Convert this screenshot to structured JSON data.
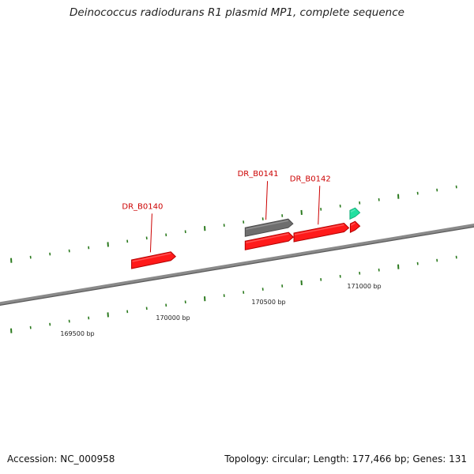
{
  "title": "Deinococcus radiodurans R1 plasmid MP1, complete sequence",
  "accession_text": "Accession: NC_000958",
  "summary_text": "Topology: circular; Length: 177,466 bp; Genes: 131",
  "colors": {
    "backbone": "#8a8a8a",
    "gene_red": "#ff1a1a",
    "gene_gray": "#6e6e6e",
    "gene_teal": "#22e0a0",
    "tick": "#2b7a1e",
    "gene_label": "#cc0000",
    "scale_label": "#222222"
  },
  "genes": [
    {
      "id": "DR_B0140",
      "color": "gene_red",
      "lane": "outer",
      "start_bp": 169866,
      "end_bp": 170096,
      "labeled": true
    },
    {
      "id": "DR_B0141",
      "color": "gene_gray",
      "lane": "outer2",
      "start_bp": 170460,
      "end_bp": 170710,
      "labeled": true
    },
    {
      "color": "gene_red",
      "lane": "outer",
      "start_bp": 170460,
      "end_bp": 170712,
      "labeled": false
    },
    {
      "id": "DR_B0142",
      "color": "gene_red",
      "lane": "outer",
      "start_bp": 170715,
      "end_bp": 171002,
      "labeled": true
    },
    {
      "color": "gene_red",
      "lane": "outer",
      "start_bp": 171010,
      "end_bp": 171060,
      "labeled": false
    },
    {
      "color": "gene_teal",
      "lane": "outer2",
      "start_bp": 171008,
      "end_bp": 171060,
      "labeled": false
    }
  ],
  "scale_labels": [
    {
      "bp": 169500,
      "text": "169500 bp"
    },
    {
      "bp": 170000,
      "text": "170000 bp"
    },
    {
      "bp": 170500,
      "text": "170500 bp"
    },
    {
      "bp": 171000,
      "text": "171000 bp"
    }
  ]
}
